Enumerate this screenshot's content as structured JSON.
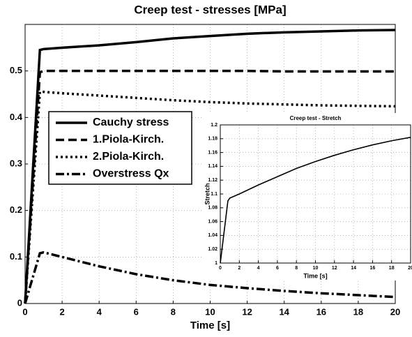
{
  "chart_data": [
    {
      "type": "line",
      "title": "Creep test - stresses [MPa]",
      "xlabel": "Time [s]",
      "x": [
        0,
        0.8,
        1,
        2,
        4,
        6,
        8,
        10,
        12,
        14,
        16,
        18,
        20
      ],
      "series": [
        {
          "name": "Cauchy stress",
          "color": "#000000",
          "linestyle": "solid",
          "values": [
            0,
            0.545,
            0.547,
            0.55,
            0.555,
            0.562,
            0.57,
            0.575,
            0.58,
            0.583,
            0.585,
            0.587,
            0.588
          ]
        },
        {
          "name": "1.Piola-Kirch.",
          "color": "#000000",
          "linestyle": "dashed",
          "values": [
            0,
            0.497,
            0.5,
            0.5,
            0.5,
            0.5,
            0.5,
            0.5,
            0.5,
            0.499,
            0.499,
            0.499,
            0.499
          ]
        },
        {
          "name": "2.Piola-Kirch.",
          "color": "#000000",
          "linestyle": "dotted",
          "values": [
            0,
            0.455,
            0.455,
            0.452,
            0.447,
            0.442,
            0.437,
            0.433,
            0.43,
            0.428,
            0.426,
            0.425,
            0.424
          ]
        },
        {
          "name": "Overstress Qx",
          "color": "#000000",
          "linestyle": "dashdot",
          "values": [
            0,
            0.108,
            0.11,
            0.1,
            0.08,
            0.063,
            0.05,
            0.04,
            0.033,
            0.027,
            0.022,
            0.018,
            0.014
          ]
        }
      ],
      "xlim": [
        0,
        20
      ],
      "xticks": [
        0,
        2,
        4,
        6,
        8,
        10,
        12,
        14,
        16,
        18,
        20
      ],
      "ylim": [
        0,
        0.6
      ],
      "yticks": [
        0,
        0.1,
        0.2,
        0.3,
        0.4,
        0.5
      ],
      "grid": true,
      "legend": "center left"
    },
    {
      "type": "line",
      "title": "Creep test - Stretch",
      "xlabel": "Time [s]",
      "ylabel": "Stretch",
      "x": [
        0,
        0.8,
        1,
        2,
        4,
        6,
        8,
        10,
        12,
        14,
        16,
        18,
        20
      ],
      "series": [
        {
          "color": "#000000",
          "linestyle": "solid",
          "values": [
            1,
            1.09,
            1.094,
            1.1,
            1.113,
            1.125,
            1.137,
            1.147,
            1.156,
            1.164,
            1.171,
            1.177,
            1.182
          ]
        }
      ],
      "xlim": [
        0,
        20
      ],
      "xticks": [
        0,
        2,
        4,
        6,
        8,
        10,
        12,
        14,
        16,
        18,
        20
      ],
      "ylim": [
        1,
        1.2
      ],
      "yticks": [
        1,
        1.02,
        1.04,
        1.06,
        1.08,
        1.1,
        1.12,
        1.14,
        1.16,
        1.18,
        1.2
      ],
      "grid": true
    }
  ]
}
